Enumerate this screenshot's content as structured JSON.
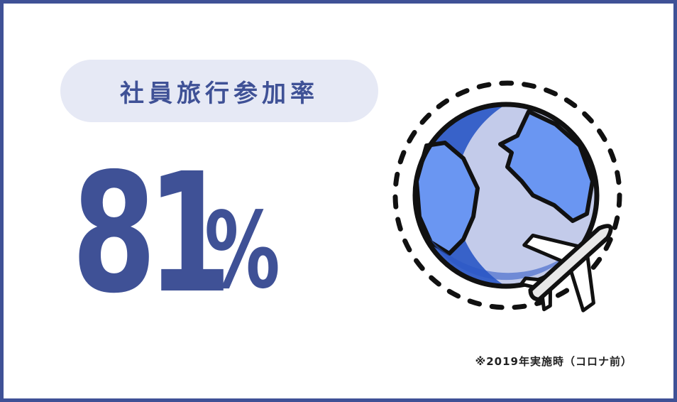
{
  "title": "社員旅行参加率",
  "stat": {
    "number": "81",
    "unit": "%"
  },
  "note": "※2019年実施時（コロナ前）",
  "icon": "globe-airplane-icon",
  "colors": {
    "primary": "#3f5196",
    "pill_bg": "#e6e9f5",
    "globe_ocean_light": "#c3cbea",
    "globe_land": "#6a96f2",
    "globe_dark": "#2956c5",
    "outline": "#111111",
    "plane_body": "#e8e8e8"
  }
}
